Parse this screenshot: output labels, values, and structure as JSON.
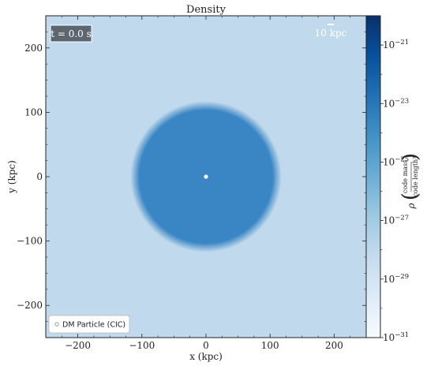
{
  "chart_data": {
    "type": "heatmap",
    "title": "Density",
    "xlabel": "x  (kpc)",
    "ylabel": "y  (kpc)",
    "xlim": [
      -250,
      250
    ],
    "ylim": [
      -250,
      250
    ],
    "xticks": [
      -200,
      -100,
      0,
      100,
      200
    ],
    "yticks": [
      -200,
      -100,
      0,
      100,
      200
    ],
    "xtick_labels": [
      "−200",
      "−100",
      "0",
      "100",
      "200"
    ],
    "ytick_labels": [
      "−200",
      "−100",
      "0",
      "100",
      "200"
    ],
    "background_color": "#c1d9ec",
    "sphere": {
      "center": [
        0,
        0
      ],
      "radius": 118,
      "color": "#3a86c5",
      "edge_color": "#c1d9ec"
    },
    "particles": [
      {
        "x": 0,
        "y": 0,
        "label": "DM Particle (CIC)"
      }
    ],
    "time_label": "t = 0.0 s",
    "scale_bar_label": "10 kpc",
    "scale_bar_length": 10,
    "legend_position": "bottom-left",
    "colorbar": {
      "scale": "log",
      "min_exp": -31,
      "max_exp": -20,
      "tick_base": "10",
      "tick_exponents": [
        -21,
        -23,
        -25,
        -27,
        -29,
        -31
      ],
      "label_symbol": "ρ",
      "label_numerator": "code mass",
      "label_denominator": "code length³",
      "colormap": [
        "#f7fbff",
        "#deebf7",
        "#c6dbef",
        "#9ecae1",
        "#6baed6",
        "#4292c6",
        "#2171b5",
        "#08519c",
        "#08306b"
      ]
    }
  }
}
